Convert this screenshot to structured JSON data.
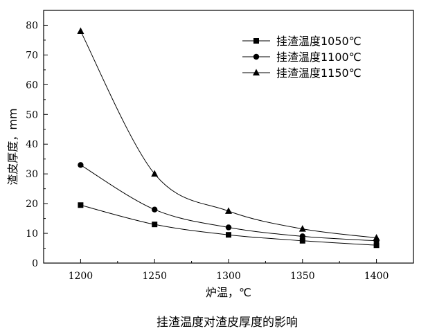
{
  "caption": "挂渣温度对渣皮厚度的影响",
  "chart_data": {
    "type": "line",
    "title": "",
    "xlabel": "炉温，℃",
    "ylabel": "渣皮厚度，mm",
    "x": [
      1200,
      1250,
      1300,
      1350,
      1400
    ],
    "xlim": [
      1175,
      1425
    ],
    "ylim": [
      0,
      85
    ],
    "x_ticks": [
      1200,
      1250,
      1300,
      1350,
      1400
    ],
    "y_ticks": [
      0,
      10,
      20,
      30,
      40,
      50,
      60,
      70,
      80
    ],
    "legend_position": "top-right",
    "grid": false,
    "series": [
      {
        "name": "挂渣温度1050℃",
        "marker": "square",
        "values": [
          19.5,
          13,
          9.5,
          7.5,
          6
        ]
      },
      {
        "name": "挂渣温度1100℃",
        "marker": "circle",
        "values": [
          33,
          18,
          12,
          9,
          7.5
        ]
      },
      {
        "name": "挂渣温度1150℃",
        "marker": "triangle",
        "values": [
          78,
          30,
          17.5,
          11.5,
          8.5
        ]
      }
    ]
  }
}
